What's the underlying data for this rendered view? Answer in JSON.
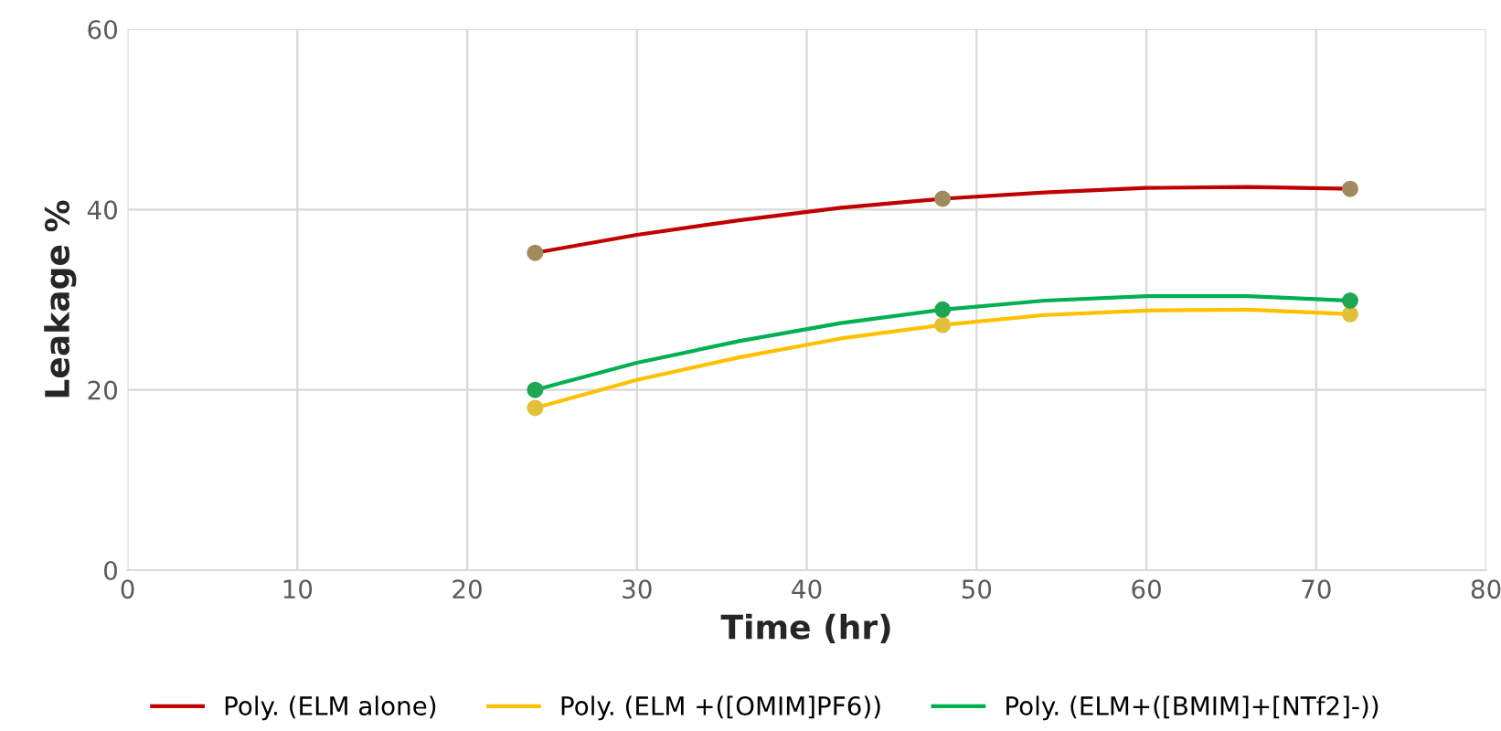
{
  "chart_data": {
    "type": "line",
    "xlabel": "Time (hr)",
    "ylabel": "Leakage %",
    "xlim": [
      0,
      80
    ],
    "xticks": [
      0,
      10,
      20,
      30,
      40,
      50,
      60,
      70,
      80
    ],
    "ylim": [
      0,
      60
    ],
    "yticks": [
      0,
      20,
      40,
      60
    ],
    "grid": true,
    "legend": "bottom",
    "series": [
      {
        "type": "scatter",
        "color": "#a08a5e",
        "marker": "circle",
        "x": [
          24,
          48,
          72
        ],
        "values": [
          35.2,
          41.2,
          42.3
        ]
      },
      {
        "type": "scatter",
        "color": "#e2c13a",
        "marker": "circle",
        "x": [
          24,
          48,
          72
        ],
        "values": [
          18.0,
          27.2,
          28.4
        ]
      },
      {
        "type": "scatter",
        "color": "#1fa652",
        "marker": "circle",
        "x": [
          24,
          48,
          72
        ],
        "values": [
          20.0,
          28.9,
          29.9
        ]
      },
      {
        "name": "Poly. (ELM alone)",
        "color": "#c00000",
        "x": [
          24,
          30,
          36,
          42,
          48,
          54,
          60,
          66,
          72
        ],
        "values": [
          35.2,
          37.2,
          38.8,
          40.2,
          41.2,
          41.9,
          42.4,
          42.5,
          42.3
        ]
      },
      {
        "name": "Poly. (ELM +([OMIM]PF6))",
        "color": "#ffc000",
        "x": [
          24,
          30,
          36,
          42,
          48,
          54,
          60,
          66,
          72
        ],
        "values": [
          18.0,
          21.1,
          23.6,
          25.7,
          27.2,
          28.3,
          28.8,
          28.9,
          28.4
        ]
      },
      {
        "name": "Poly. (ELM+([BMIM]+[NTf2]-))",
        "color": "#00b050",
        "x": [
          24,
          30,
          36,
          42,
          48,
          54,
          60,
          66,
          72
        ],
        "values": [
          20.0,
          23.0,
          25.4,
          27.4,
          28.9,
          29.9,
          30.4,
          30.4,
          29.9
        ]
      }
    ]
  }
}
